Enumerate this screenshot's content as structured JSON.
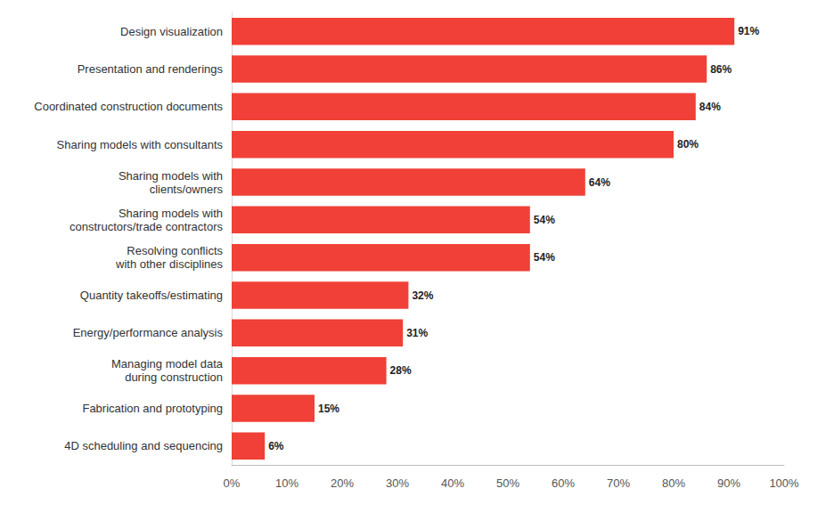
{
  "chart_data": {
    "type": "bar",
    "orientation": "horizontal",
    "categories": [
      "Design visualization",
      "Presentation and renderings",
      "Coordinated construction documents",
      "Sharing models with consultants",
      "Sharing models with\nclients/owners",
      "Sharing models with\nconstructors/trade contractors",
      "Resolving conflicts\nwith other disciplines",
      "Quantity takeoffs/estimating",
      "Energy/performance analysis",
      "Managing model data\nduring construction",
      "Fabrication and prototyping",
      "4D scheduling and sequencing"
    ],
    "values": [
      91,
      86,
      84,
      80,
      64,
      54,
      54,
      32,
      31,
      28,
      15,
      6
    ],
    "value_labels": [
      "91%",
      "86%",
      "84%",
      "80%",
      "64%",
      "54%",
      "54%",
      "32%",
      "31%",
      "28%",
      "15%",
      "6%"
    ],
    "color": "#f04037",
    "xlim": [
      0,
      100
    ],
    "xticks": [
      {
        "value": 0,
        "label": "0%"
      },
      {
        "value": 10,
        "label": "10%"
      },
      {
        "value": 20,
        "label": "20%"
      },
      {
        "value": 30,
        "label": "30%"
      },
      {
        "value": 40,
        "label": "40%"
      },
      {
        "value": 50,
        "label": "50%"
      },
      {
        "value": 60,
        "label": "60%"
      },
      {
        "value": 70,
        "label": "70%"
      },
      {
        "value": 80,
        "label": "80%"
      },
      {
        "value": 90,
        "label": "90%"
      },
      {
        "value": 100,
        "label": "100%"
      }
    ],
    "grid": false,
    "data_labels": true
  }
}
